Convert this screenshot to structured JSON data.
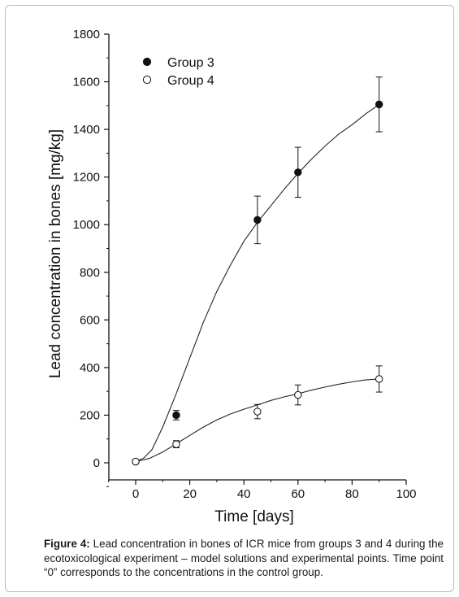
{
  "chart_data": {
    "type": "scatter",
    "xlabel": "Time [days]",
    "ylabel": "Lead concentration in bones [mg/kg]",
    "xlim": [
      -10,
      100
    ],
    "ylim": [
      -100,
      1800
    ],
    "xticks": [
      0,
      20,
      40,
      60,
      80,
      100
    ],
    "yticks": [
      0,
      200,
      400,
      600,
      800,
      1000,
      1200,
      1400,
      1600,
      1800
    ],
    "grid": false,
    "legend_position": "top-left",
    "series": [
      {
        "name": "Group 3",
        "marker": "filled-circle",
        "x": [
          0,
          15,
          45,
          60,
          90
        ],
        "y": [
          5,
          200,
          1020,
          1220,
          1505
        ],
        "error": [
          0,
          20,
          100,
          105,
          115
        ],
        "model_curve": {
          "x": [
            0,
            3,
            6,
            10,
            15,
            20,
            25,
            30,
            35,
            40,
            45,
            50,
            55,
            60,
            65,
            70,
            75,
            80,
            85,
            90
          ],
          "y": [
            5,
            20,
            55,
            150,
            290,
            440,
            590,
            720,
            830,
            930,
            1010,
            1080,
            1150,
            1215,
            1275,
            1330,
            1380,
            1420,
            1465,
            1505
          ]
        }
      },
      {
        "name": "Group 4",
        "marker": "open-circle",
        "x": [
          0,
          15,
          45,
          60,
          90
        ],
        "y": [
          5,
          78,
          215,
          285,
          352
        ],
        "error": [
          0,
          15,
          30,
          42,
          55
        ],
        "model_curve": {
          "x": [
            0,
            5,
            10,
            15,
            20,
            25,
            30,
            35,
            40,
            45,
            50,
            55,
            60,
            65,
            70,
            75,
            80,
            85,
            90
          ],
          "y": [
            5,
            18,
            45,
            80,
            115,
            150,
            180,
            205,
            225,
            243,
            262,
            277,
            290,
            305,
            318,
            330,
            340,
            348,
            352
          ]
        }
      }
    ]
  },
  "caption": {
    "label": "Figure 4:",
    "text": " Lead concentration in bones of ICR mice from groups 3 and 4 during the ecotoxicological experiment – model solutions and experimental points. Time point “0” corresponds to the concentrations in the control group."
  }
}
